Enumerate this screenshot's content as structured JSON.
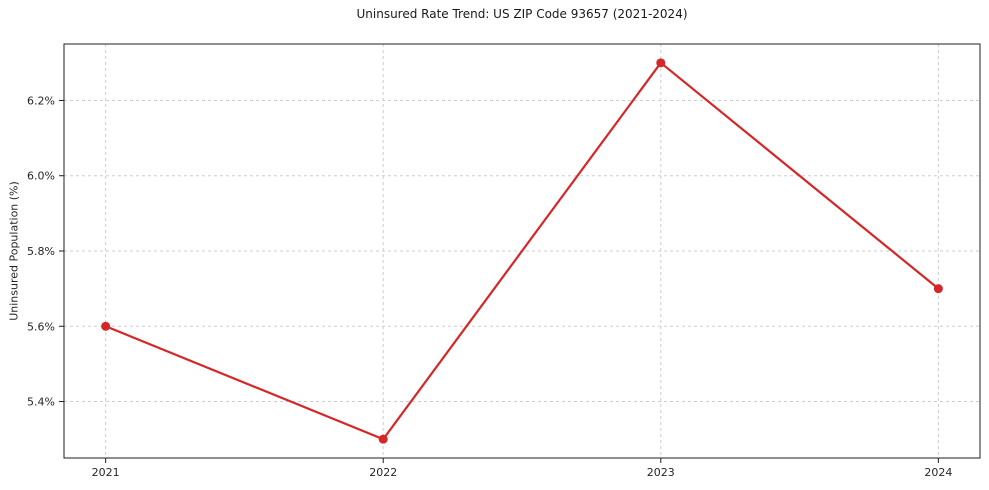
{
  "chart_data": {
    "type": "line",
    "title": "Uninsured Rate Trend: US ZIP Code 93657 (2021-2024)",
    "xlabel": "",
    "ylabel": "Uninsured Population (%)",
    "x": [
      2021,
      2022,
      2023,
      2024
    ],
    "values": [
      5.6,
      5.3,
      6.3,
      5.7
    ],
    "xlim": [
      2020.85,
      2024.15
    ],
    "ylim": [
      5.25,
      6.35
    ],
    "xticks": {
      "values": [
        2021,
        2022,
        2023,
        2024
      ],
      "labels": [
        "2021",
        "2022",
        "2023",
        "2024"
      ]
    },
    "yticks": {
      "values": [
        5.4,
        5.6,
        5.8,
        6.0,
        6.2
      ],
      "labels": [
        "5.4%",
        "5.6%",
        "5.8%",
        "6.0%",
        "6.2%"
      ]
    },
    "grid": true,
    "grid_style": "dashed",
    "legend": "none",
    "line_color": "#d62728",
    "marker": "circle",
    "grid_color": "#cdcdcd",
    "spine_color": "#1f1f1f",
    "background": "#ffffff"
  }
}
